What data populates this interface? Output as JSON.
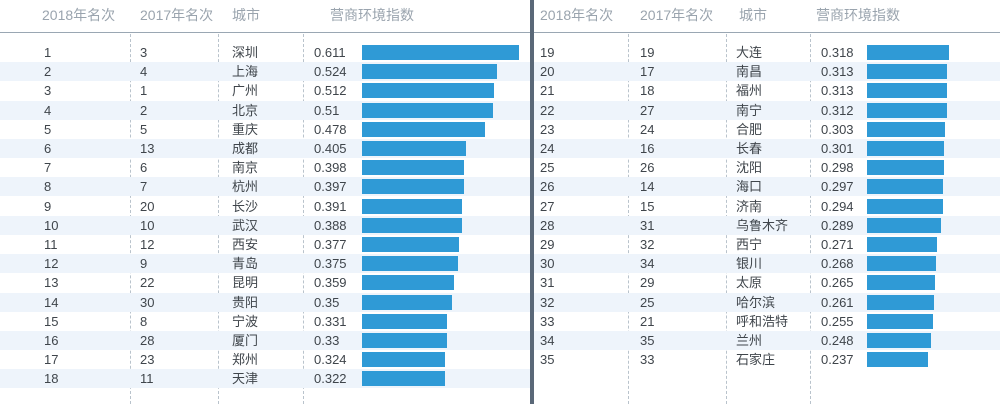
{
  "chart_data": {
    "type": "table",
    "columns": [
      "2018年名次",
      "2017年名次",
      "城市",
      "营商环境指数"
    ],
    "rows_left": [
      {
        "rank2018": "1",
        "rank2017": "3",
        "city": "深圳",
        "index": "0.611",
        "value": 0.611
      },
      {
        "rank2018": "2",
        "rank2017": "4",
        "city": "上海",
        "index": "0.524",
        "value": 0.524
      },
      {
        "rank2018": "3",
        "rank2017": "1",
        "city": "广州",
        "index": "0.512",
        "value": 0.512
      },
      {
        "rank2018": "4",
        "rank2017": "2",
        "city": "北京",
        "index": "0.51",
        "value": 0.51
      },
      {
        "rank2018": "5",
        "rank2017": "5",
        "city": "重庆",
        "index": "0.478",
        "value": 0.478
      },
      {
        "rank2018": "6",
        "rank2017": "13",
        "city": "成都",
        "index": "0.405",
        "value": 0.405
      },
      {
        "rank2018": "7",
        "rank2017": "6",
        "city": "南京",
        "index": "0.398",
        "value": 0.398
      },
      {
        "rank2018": "8",
        "rank2017": "7",
        "city": "杭州",
        "index": "0.397",
        "value": 0.397
      },
      {
        "rank2018": "9",
        "rank2017": "20",
        "city": "长沙",
        "index": "0.391",
        "value": 0.391
      },
      {
        "rank2018": "10",
        "rank2017": "10",
        "city": "武汉",
        "index": "0.388",
        "value": 0.388
      },
      {
        "rank2018": "11",
        "rank2017": "12",
        "city": "西安",
        "index": "0.377",
        "value": 0.377
      },
      {
        "rank2018": "12",
        "rank2017": "9",
        "city": "青岛",
        "index": "0.375",
        "value": 0.375
      },
      {
        "rank2018": "13",
        "rank2017": "22",
        "city": "昆明",
        "index": "0.359",
        "value": 0.359
      },
      {
        "rank2018": "14",
        "rank2017": "30",
        "city": "贵阳",
        "index": "0.35",
        "value": 0.35
      },
      {
        "rank2018": "15",
        "rank2017": "8",
        "city": "宁波",
        "index": "0.331",
        "value": 0.331
      },
      {
        "rank2018": "16",
        "rank2017": "28",
        "city": "厦门",
        "index": "0.33",
        "value": 0.33
      },
      {
        "rank2018": "17",
        "rank2017": "23",
        "city": "郑州",
        "index": "0.324",
        "value": 0.324
      },
      {
        "rank2018": "18",
        "rank2017": "11",
        "city": "天津",
        "index": "0.322",
        "value": 0.322
      }
    ],
    "rows_right": [
      {
        "rank2018": "19",
        "rank2017": "19",
        "city": "大连",
        "index": "0.318",
        "value": 0.318
      },
      {
        "rank2018": "20",
        "rank2017": "17",
        "city": "南昌",
        "index": "0.313",
        "value": 0.313
      },
      {
        "rank2018": "21",
        "rank2017": "18",
        "city": "福州",
        "index": "0.313",
        "value": 0.313
      },
      {
        "rank2018": "22",
        "rank2017": "27",
        "city": "南宁",
        "index": "0.312",
        "value": 0.312
      },
      {
        "rank2018": "23",
        "rank2017": "24",
        "city": "合肥",
        "index": "0.303",
        "value": 0.303
      },
      {
        "rank2018": "24",
        "rank2017": "16",
        "city": "长春",
        "index": "0.301",
        "value": 0.301
      },
      {
        "rank2018": "25",
        "rank2017": "26",
        "city": "沈阳",
        "index": "0.298",
        "value": 0.298
      },
      {
        "rank2018": "26",
        "rank2017": "14",
        "city": "海口",
        "index": "0.297",
        "value": 0.297
      },
      {
        "rank2018": "27",
        "rank2017": "15",
        "city": "济南",
        "index": "0.294",
        "value": 0.294
      },
      {
        "rank2018": "28",
        "rank2017": "31",
        "city": "乌鲁木齐",
        "index": "0.289",
        "value": 0.289
      },
      {
        "rank2018": "29",
        "rank2017": "32",
        "city": "西宁",
        "index": "0.271",
        "value": 0.271
      },
      {
        "rank2018": "30",
        "rank2017": "34",
        "city": "银川",
        "index": "0.268",
        "value": 0.268
      },
      {
        "rank2018": "31",
        "rank2017": "29",
        "city": "太原",
        "index": "0.265",
        "value": 0.265
      },
      {
        "rank2018": "32",
        "rank2017": "25",
        "city": "哈尔滨",
        "index": "0.261",
        "value": 0.261
      },
      {
        "rank2018": "33",
        "rank2017": "21",
        "city": "呼和浩特",
        "index": "0.255",
        "value": 0.255
      },
      {
        "rank2018": "34",
        "rank2017": "35",
        "city": "兰州",
        "index": "0.248",
        "value": 0.248
      },
      {
        "rank2018": "35",
        "rank2017": "33",
        "city": "石家庄",
        "index": "0.237",
        "value": 0.237
      }
    ],
    "bar_color": "#2f9ad6",
    "alt_row_color": "#eef4fb",
    "grid": true
  }
}
